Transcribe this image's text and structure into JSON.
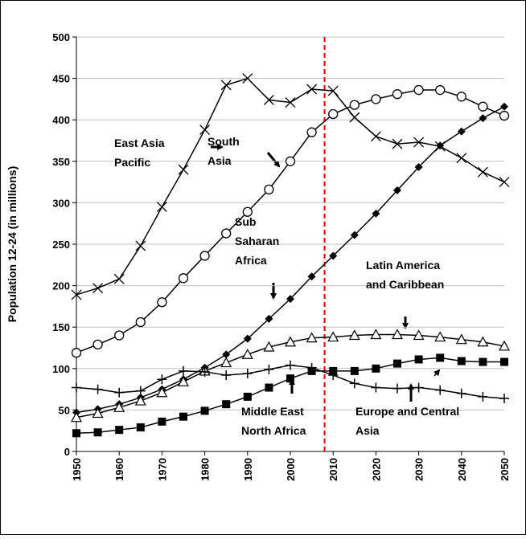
{
  "chart_data": {
    "type": "line",
    "ylabel": "Population 12-24 (in millions)",
    "x": [
      1950,
      1955,
      1960,
      1965,
      1970,
      1975,
      1980,
      1985,
      1990,
      1995,
      2000,
      2005,
      2010,
      2015,
      2020,
      2025,
      2030,
      2035,
      2040,
      2045,
      2050
    ],
    "xlim": [
      1950,
      2050
    ],
    "xticks": [
      1950,
      1960,
      1970,
      1980,
      1990,
      2000,
      2010,
      2020,
      2030,
      2040,
      2050
    ],
    "ylim": [
      0,
      500
    ],
    "yticks": [
      0,
      50,
      100,
      150,
      200,
      250,
      300,
      350,
      400,
      450,
      500
    ],
    "grid": true,
    "reference_line": {
      "x": 2008,
      "color": "#e00000"
    },
    "series": [
      {
        "marker": "x",
        "color": "#000000",
        "values": [
          189,
          197,
          208,
          248,
          295,
          340,
          388,
          442,
          450,
          424,
          421,
          437,
          435,
          403,
          380,
          371,
          373,
          368,
          354,
          337,
          325
        ]
      },
      {
        "marker": "circle",
        "color": "#000000",
        "values": [
          119,
          129,
          140,
          156,
          180,
          209,
          236,
          263,
          289,
          316,
          350,
          385,
          407,
          418,
          425,
          431,
          436,
          436,
          428,
          416,
          405
        ]
      },
      {
        "marker": "diamond",
        "color": "#000000",
        "values": [
          47,
          51,
          57,
          65,
          75,
          87,
          101,
          117,
          136,
          160,
          184,
          211,
          236,
          261,
          287,
          315,
          343,
          369,
          386,
          402,
          416
        ]
      },
      {
        "marker": "triangle",
        "color": "#000000",
        "values": [
          41,
          46,
          53,
          61,
          71,
          84,
          97,
          107,
          117,
          126,
          132,
          137,
          138,
          140,
          141,
          141,
          140,
          138,
          135,
          132,
          127
        ]
      },
      {
        "marker": "square",
        "color": "#000000",
        "values": [
          22,
          23,
          26,
          29,
          36,
          42,
          49,
          57,
          66,
          77,
          88,
          97,
          97,
          97,
          100,
          106,
          111,
          113,
          109,
          108,
          108
        ]
      },
      {
        "marker": "plus",
        "color": "#000000",
        "values": [
          77,
          75,
          71,
          73,
          87,
          97,
          96,
          92,
          94,
          99,
          104,
          101,
          92,
          82,
          77,
          76,
          77,
          74,
          70,
          66,
          64
        ]
      }
    ],
    "annotations": [
      {
        "lines": [
          "East Asia",
          "Pacific"
        ]
      },
      {
        "lines": [
          "South",
          "Asia"
        ]
      },
      {
        "lines": [
          "Sub",
          "Saharan",
          "Africa"
        ]
      },
      {
        "lines": [
          "Latin America",
          "and Caribbean"
        ]
      },
      {
        "lines": [
          "Middle East",
          "North Africa"
        ]
      },
      {
        "lines": [
          "Europe and Central",
          "Asia"
        ]
      }
    ]
  }
}
